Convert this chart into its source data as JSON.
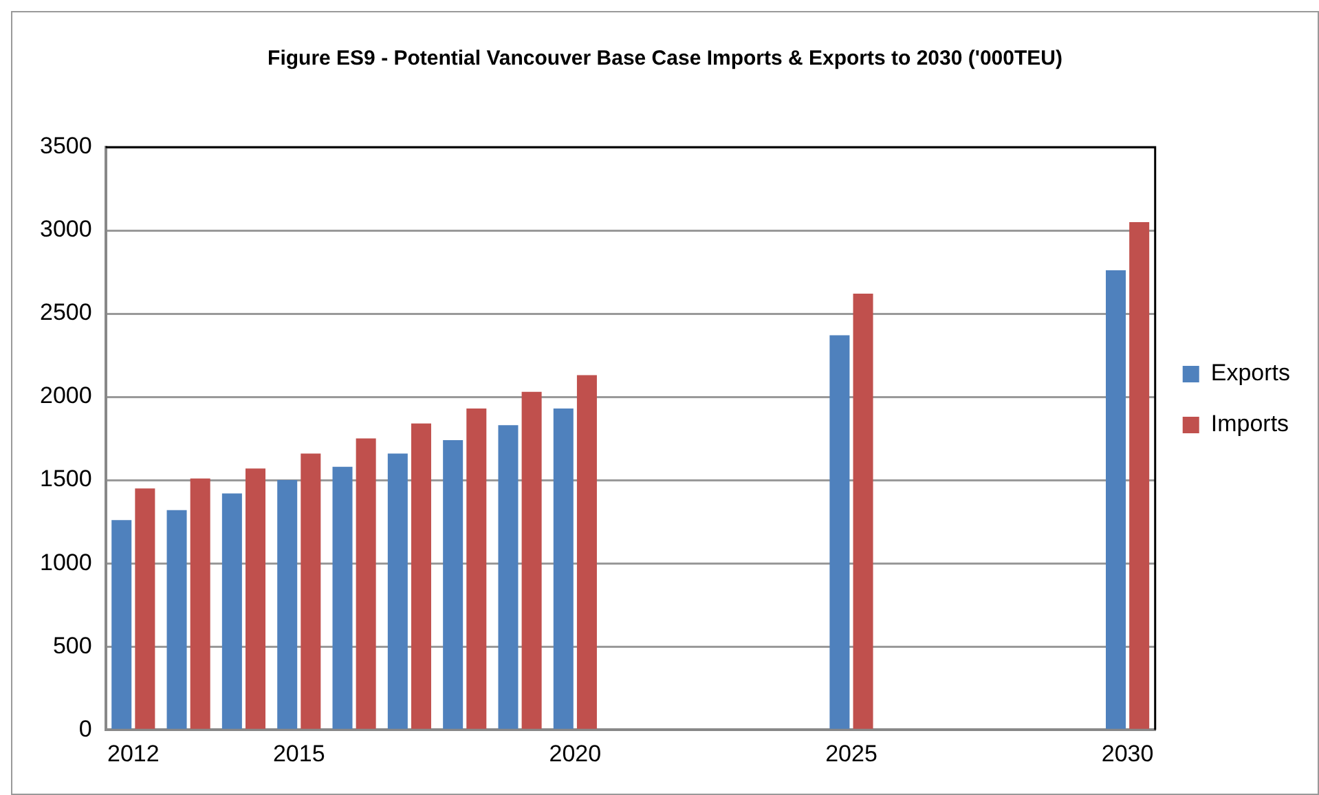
{
  "chart_data": {
    "type": "bar",
    "title": "Figure ES9 - Potential Vancouver Base Case Imports & Exports to 2030 ('000TEU)",
    "categories": [
      "2012",
      null,
      null,
      "2015",
      null,
      null,
      null,
      null,
      "2020",
      null,
      null,
      null,
      null,
      "2025",
      null,
      null,
      null,
      null,
      "2030"
    ],
    "series": [
      {
        "name": "Exports",
        "color": "#4f81bd",
        "values": [
          1260,
          1320,
          1420,
          1500,
          1580,
          1660,
          1740,
          1830,
          1930,
          null,
          null,
          null,
          null,
          2370,
          null,
          null,
          null,
          null,
          2760
        ]
      },
      {
        "name": "Imports",
        "color": "#c0504d",
        "values": [
          1450,
          1510,
          1570,
          1660,
          1750,
          1840,
          1930,
          2030,
          2130,
          null,
          null,
          null,
          null,
          2620,
          null,
          null,
          null,
          null,
          3050
        ]
      }
    ],
    "ylim": [
      0,
      3500
    ],
    "yticks": [
      0,
      500,
      1000,
      1500,
      2000,
      2500,
      3000,
      3500
    ],
    "grid": "y",
    "legend": "right"
  }
}
